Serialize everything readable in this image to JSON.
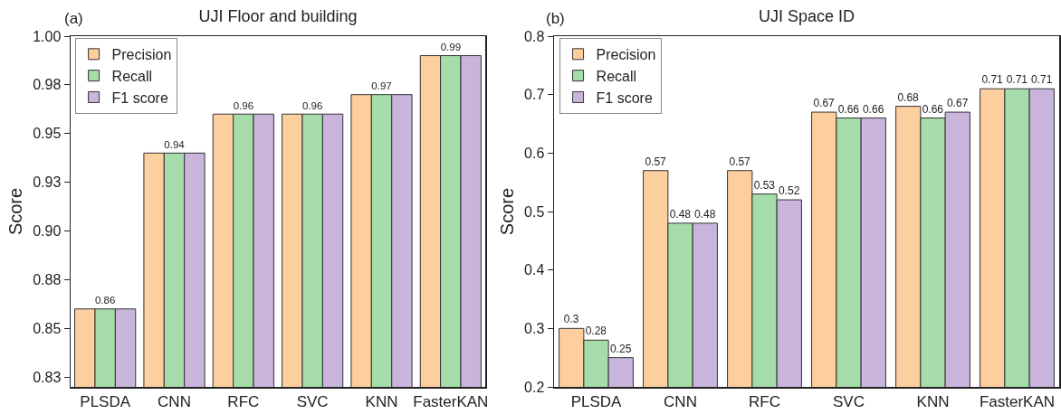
{
  "chart_data": [
    {
      "type": "bar",
      "title": "UJI Floor and building",
      "annotations": [
        "(a)"
      ],
      "ylabel": "Score",
      "categories": [
        "PLSDA",
        "CNN",
        "RFC",
        "SVC",
        "KNN",
        "FasterKAN"
      ],
      "series": [
        {
          "name": "Precision",
          "color": "#fdcf9e",
          "values": [
            0.86,
            0.94,
            0.96,
            0.96,
            0.97,
            0.99
          ]
        },
        {
          "name": "Recall",
          "color": "#a5dca9",
          "values": [
            0.86,
            0.94,
            0.96,
            0.96,
            0.97,
            0.99
          ],
          "value_labels": [
            "0.86",
            "0.94",
            "0.96",
            "0.96",
            "0.97",
            "0.99"
          ]
        },
        {
          "name": "F1 score",
          "color": "#c9b5dc",
          "values": [
            0.86,
            0.94,
            0.96,
            0.96,
            0.97,
            0.99
          ]
        }
      ],
      "ylim": [
        0.82,
        1.0
      ],
      "yticks": [
        {
          "value": 0.825,
          "label": "0.83"
        },
        0.85,
        {
          "value": 0.875,
          "label": "0.88"
        },
        {
          "value": 0.9,
          "label": "0.90"
        },
        {
          "value": 0.925,
          "label": "0.93"
        },
        0.95,
        {
          "value": 0.975,
          "label": "0.98"
        },
        {
          "value": 1.0,
          "label": "1.00"
        }
      ],
      "grid": false,
      "legend": "top left"
    },
    {
      "type": "bar",
      "title": "UJI Space ID",
      "annotations": [
        "(b)"
      ],
      "ylabel": "Score",
      "categories": [
        "PLSDA",
        "CNN",
        "RFC",
        "SVC",
        "KNN",
        "FasterKAN"
      ],
      "series": [
        {
          "name": "Precision",
          "color": "#fdcf9e",
          "values": [
            0.3,
            0.57,
            0.57,
            0.67,
            0.68,
            0.71
          ]
        },
        {
          "name": "Recall",
          "color": "#a5dca9",
          "values": [
            0.28,
            0.48,
            0.53,
            0.66,
            0.66,
            0.71
          ]
        },
        {
          "name": "F1 score",
          "color": "#c9b5dc",
          "values": [
            0.25,
            0.48,
            0.52,
            0.66,
            0.67,
            0.71
          ]
        }
      ],
      "ylim": [
        0.2,
        0.8
      ],
      "yticks": [
        0.2,
        0.3,
        0.4,
        0.5,
        0.6,
        0.7,
        0.8
      ],
      "grid": false,
      "legend": "top left",
      "data_labels": true
    }
  ]
}
